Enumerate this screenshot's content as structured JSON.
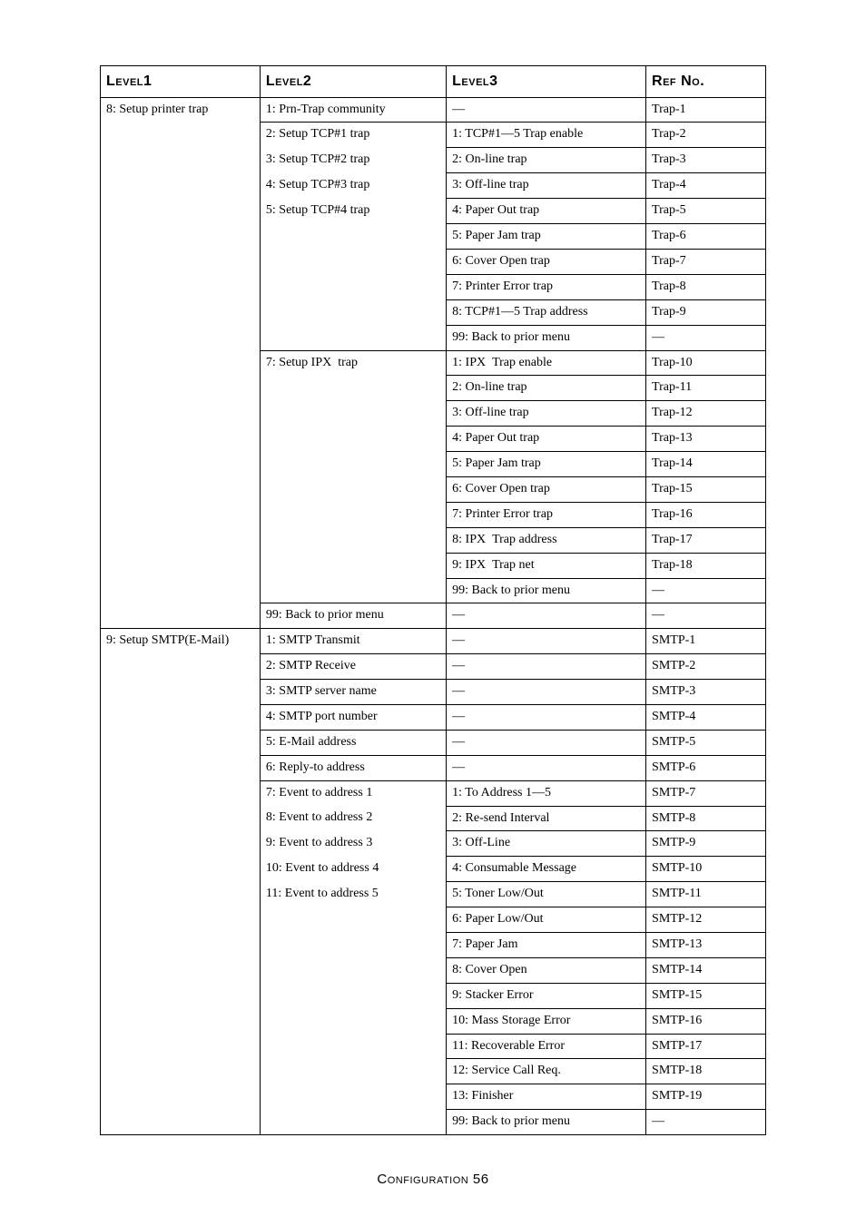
{
  "headers": {
    "c1": "Level1",
    "c2": "Level2",
    "c3": "Level3",
    "c4": "Ref No."
  },
  "groups": [
    {
      "level1": "8: Setup printer trap",
      "subgroups": [
        {
          "level2": "1: Prn-Trap community",
          "rows": [
            {
              "l3": "—",
              "ref": "Trap-1"
            }
          ]
        },
        {
          "level2_lines": [
            "2: Setup TCP#1 trap",
            "3: Setup TCP#2 trap",
            "4: Setup TCP#3 trap",
            "5: Setup TCP#4 trap"
          ],
          "rows": [
            {
              "l3": "1:  TCP#1—5 Trap enable",
              "ref": "Trap-2"
            },
            {
              "l3": "2: On-line trap",
              "ref": "Trap-3"
            },
            {
              "l3": "3: Off-line trap",
              "ref": "Trap-4"
            },
            {
              "l3": "4: Paper Out trap",
              "ref": "Trap-5"
            },
            {
              "l3": "5: Paper Jam trap",
              "ref": "Trap-6"
            },
            {
              "l3": "6: Cover Open trap",
              "ref": "Trap-7"
            },
            {
              "l3": "7:  Printer Error trap",
              "ref": "Trap-8"
            },
            {
              "l3": "8: TCP#1—5 Trap address",
              "ref": "Trap-9"
            },
            {
              "l3": "99: Back to prior menu",
              "ref": "—"
            }
          ]
        },
        {
          "level2": "7: Setup IPX  trap",
          "rows": [
            {
              "l3": "1: IPX  Trap enable",
              "ref": "Trap-10"
            },
            {
              "l3": "2: On-line trap",
              "ref": "Trap-11"
            },
            {
              "l3": "3: Off-line trap",
              "ref": "Trap-12"
            },
            {
              "l3": "4: Paper Out trap",
              "ref": "Trap-13"
            },
            {
              "l3": "5: Paper Jam trap",
              "ref": "Trap-14"
            },
            {
              "l3": "6: Cover Open trap",
              "ref": "Trap-15"
            },
            {
              "l3": "7: Printer Error trap",
              "ref": "Trap-16"
            },
            {
              "l3": "8: IPX  Trap address",
              "ref": "Trap-17"
            },
            {
              "l3": "9: IPX  Trap net",
              "ref": "Trap-18"
            },
            {
              "l3": "99: Back to prior menu",
              "ref": "—"
            }
          ]
        },
        {
          "level2": "99: Back to prior menu",
          "rows": [
            {
              "l3": "—",
              "ref": "—"
            }
          ]
        }
      ]
    },
    {
      "level1": "9: Setup SMTP(E-Mail)",
      "subgroups": [
        {
          "level2": "1: SMTP Transmit",
          "rows": [
            {
              "l3": "—",
              "ref": "SMTP-1"
            }
          ]
        },
        {
          "level2": "2: SMTP Receive",
          "rows": [
            {
              "l3": "—",
              "ref": "SMTP-2"
            }
          ]
        },
        {
          "level2": "3:  SMTP server name",
          "rows": [
            {
              "l3": "—",
              "ref": "SMTP-3"
            }
          ]
        },
        {
          "level2": "4:  SMTP port number",
          "rows": [
            {
              "l3": "—",
              "ref": "SMTP-4"
            }
          ]
        },
        {
          "level2": "5: E-Mail address",
          "rows": [
            {
              "l3": "—",
              "ref": "SMTP-5"
            }
          ]
        },
        {
          "level2": "6: Reply-to address",
          "rows": [
            {
              "l3": "—",
              "ref": "SMTP-6"
            }
          ]
        },
        {
          "level2_lines": [
            "7: Event to address 1",
            "8: Event to address 2",
            "9: Event to address 3",
            "10: Event to address 4",
            "11: Event to address 5"
          ],
          "rows": [
            {
              "l3": "1: To Address 1—5",
              "ref": "SMTP-7"
            },
            {
              "l3": "2:  Re-send Interval",
              "ref": "SMTP-8"
            },
            {
              "l3": "3: Off-Line",
              "ref": "SMTP-9"
            },
            {
              "l3": "4: Consumable Message",
              "ref": "SMTP-10"
            },
            {
              "l3": "5: Toner Low/Out",
              "ref": "SMTP-11"
            },
            {
              "l3": "6: Paper Low/Out",
              "ref": "SMTP-12"
            },
            {
              "l3": "7: Paper Jam",
              "ref": "SMTP-13"
            },
            {
              "l3": "8:  Cover Open",
              "ref": "SMTP-14"
            },
            {
              "l3": "9: Stacker Error",
              "ref": "SMTP-15"
            },
            {
              "l3": "10: Mass Storage Error",
              "ref": "SMTP-16"
            },
            {
              "l3": "11: Recoverable Error",
              "ref": "SMTP-17"
            },
            {
              "l3": "12: Service Call Req.",
              "ref": "SMTP-18"
            },
            {
              "l3": "13: Finisher",
              "ref": "SMTP-19"
            },
            {
              "l3": "99: Back to prior menu",
              "ref": "—"
            }
          ]
        }
      ]
    }
  ],
  "footer": "Configuration 56"
}
